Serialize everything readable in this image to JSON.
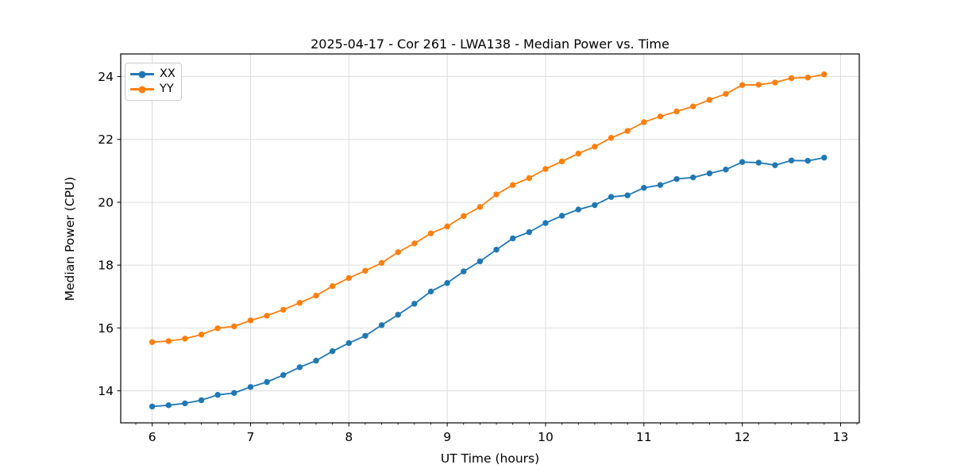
{
  "title": "2025-04-17 - Cor 261 - LWA138 - Median Power vs. Time",
  "colors": {
    "series_blue": "#1f77b4",
    "series_orange": "#ff7f0e",
    "grid": "#dcdcdc",
    "spine": "#000000",
    "background": "#ffffff"
  },
  "legend": {
    "position": "upper left",
    "items": [
      {
        "label": "XX",
        "color": "#1f77b4"
      },
      {
        "label": "YY",
        "color": "#ff7f0e"
      }
    ]
  },
  "chart_data": {
    "type": "line",
    "title": "2025-04-17 - Cor 261 - LWA138 - Median Power vs. Time",
    "xlabel": "UT Time (hours)",
    "ylabel": "Median Power (CPU)",
    "xlim": [
      5.68,
      13.19
    ],
    "ylim": [
      12.98,
      24.72
    ],
    "xticks": [
      6,
      7,
      8,
      9,
      10,
      11,
      12,
      13
    ],
    "yticks": [
      14,
      16,
      18,
      20,
      22,
      24
    ],
    "minor_xtick_step": 0.166667,
    "grid": true,
    "marker": "o",
    "legend_position": "upper left",
    "x": [
      6.0,
      6.1667,
      6.3333,
      6.5,
      6.6667,
      6.8333,
      7.0,
      7.1667,
      7.3333,
      7.5,
      7.6667,
      7.8333,
      8.0,
      8.1667,
      8.3333,
      8.5,
      8.6667,
      8.8333,
      9.0,
      9.1667,
      9.3333,
      9.5,
      9.6667,
      9.8333,
      10.0,
      10.1667,
      10.3333,
      10.5,
      10.6667,
      10.8333,
      11.0,
      11.1667,
      11.3333,
      11.5,
      11.6667,
      11.8333,
      12.0,
      12.1667,
      12.3333,
      12.5,
      12.6667,
      12.8333
    ],
    "series": [
      {
        "name": "XX",
        "color": "#1f77b4",
        "values": [
          13.5,
          13.54,
          13.6,
          13.7,
          13.87,
          13.93,
          14.12,
          14.28,
          14.5,
          14.75,
          14.96,
          15.26,
          15.52,
          15.75,
          16.09,
          16.42,
          16.77,
          17.16,
          17.43,
          17.8,
          18.12,
          18.49,
          18.85,
          19.05,
          19.34,
          19.57,
          19.77,
          19.91,
          20.17,
          20.22,
          20.46,
          20.55,
          20.74,
          20.79,
          20.92,
          21.04,
          21.28,
          21.26,
          21.18,
          21.33,
          21.32,
          21.42
        ]
      },
      {
        "name": "YY",
        "color": "#ff7f0e",
        "values": [
          15.55,
          15.58,
          15.66,
          15.79,
          15.99,
          16.05,
          16.24,
          16.39,
          16.58,
          16.8,
          17.03,
          17.33,
          17.59,
          17.82,
          18.07,
          18.41,
          18.69,
          19.01,
          19.23,
          19.56,
          19.85,
          20.25,
          20.55,
          20.77,
          21.06,
          21.3,
          21.55,
          21.77,
          22.05,
          22.27,
          22.55,
          22.73,
          22.89,
          23.05,
          23.26,
          23.45,
          23.73,
          23.74,
          23.81,
          23.95,
          23.97,
          24.07
        ]
      }
    ]
  }
}
